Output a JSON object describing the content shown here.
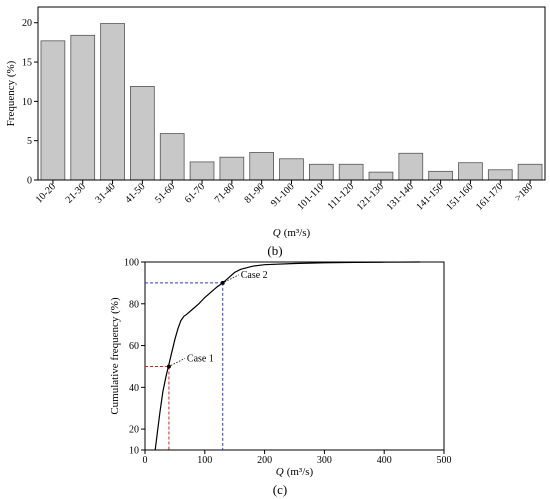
{
  "chart_data": [
    {
      "type": "bar",
      "panel_label": "(b)",
      "title": "",
      "xlabel": "Q (m³/s)",
      "xlabel_var": "Q",
      "xlabel_unit": "(m³/s)",
      "ylabel": "Frequency (%)",
      "ylim": [
        0,
        22
      ],
      "yticks": [
        "0",
        "5",
        "10",
        "15",
        "20"
      ],
      "yticks_values": [
        0,
        5,
        10,
        15,
        20
      ],
      "grid": false,
      "bar_color": "#c8c8c8",
      "categories": [
        "10-20",
        "21-30",
        "31-40",
        "41-50",
        "51-60",
        "61-70",
        "71-80",
        "81-90",
        "91-100",
        "101-110",
        "111-120",
        "121-130",
        "131-140",
        "141-150",
        "151-160",
        "161-170",
        ">180"
      ],
      "values": [
        17.7,
        18.4,
        19.9,
        11.9,
        5.9,
        2.3,
        2.9,
        3.5,
        2.7,
        2.0,
        2.0,
        1.0,
        3.4,
        1.1,
        2.2,
        1.3,
        2.0
      ]
    },
    {
      "type": "line",
      "panel_label": "(c)",
      "title": "",
      "xlabel": "Q (m³/s)",
      "xlabel_var": "Q",
      "xlabel_unit": "(m³/s)",
      "ylabel": "Cumulative frequency (%)",
      "xlim": [
        0,
        500
      ],
      "ylim": [
        10,
        100
      ],
      "xticks": [
        "0",
        "100",
        "200",
        "300",
        "400",
        "500"
      ],
      "xticks_values": [
        0,
        100,
        200,
        300,
        400,
        500
      ],
      "yticks": [
        "10",
        "20",
        "40",
        "60",
        "80",
        "100"
      ],
      "yticks_values": [
        10,
        20,
        40,
        60,
        80,
        100
      ],
      "grid": false,
      "series": [
        {
          "x": [
            17,
            20,
            25,
            30,
            35,
            40,
            45,
            50,
            55,
            60,
            65,
            70,
            80,
            90,
            100,
            110,
            120,
            130,
            140,
            150,
            160,
            180,
            200,
            250,
            300,
            350,
            400,
            460
          ],
          "y": [
            10,
            17,
            28,
            38,
            45,
            51,
            57,
            63,
            68,
            72,
            74,
            75,
            77.5,
            80,
            83,
            85.5,
            88,
            90,
            92.5,
            95,
            96.5,
            98,
            98.7,
            99.3,
            99.6,
            99.8,
            99.9,
            100
          ]
        }
      ],
      "annotations": [
        {
          "label": "Case 1",
          "x": 40,
          "y": 50,
          "guide_color": "#e02020"
        },
        {
          "label": "Case 2",
          "x": 130,
          "y": 90,
          "guide_color": "#2a3cd8"
        }
      ]
    }
  ]
}
